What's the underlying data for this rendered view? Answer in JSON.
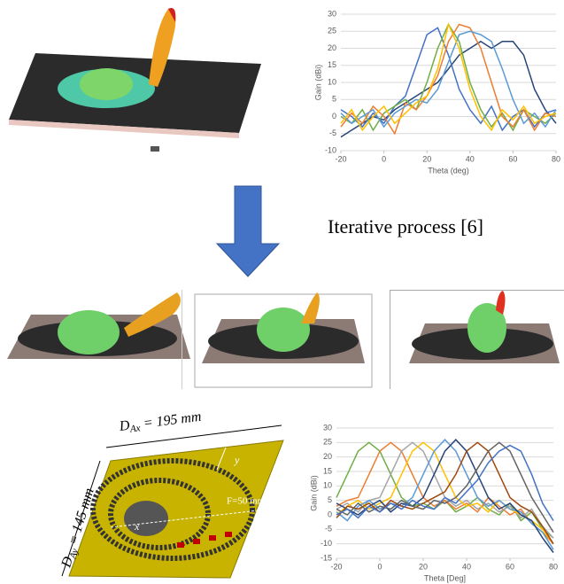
{
  "figure": {
    "caption": "Iterative process [6]",
    "dim_x": {
      "symbol": "D",
      "subscript": "Ax",
      "value": " = 195 mm"
    },
    "dim_y": {
      "symbol": "D",
      "subscript": "Ay",
      "value": " = 145 mm"
    },
    "focal": "F=50 mm",
    "axis_x": "x",
    "axis_y": "y"
  },
  "chart_data": [
    {
      "type": "line",
      "x_label": "Theta (deg)",
      "y_label": "Gain (dBi)",
      "x": [
        -20,
        -15,
        -10,
        -5,
        0,
        5,
        10,
        15,
        20,
        25,
        30,
        35,
        40,
        45,
        50,
        55,
        60,
        65,
        70,
        75,
        80
      ],
      "xlim": [
        -20,
        80
      ],
      "xticks": [
        -20,
        0,
        20,
        40,
        60,
        80
      ],
      "ylim": [
        -10,
        30
      ],
      "yticks": [
        -10,
        -5,
        0,
        5,
        10,
        15,
        20,
        25,
        30
      ],
      "series": [
        {
          "color": "#264478",
          "values": [
            -6,
            -4,
            -2,
            0,
            -1,
            2,
            4,
            6,
            8,
            10,
            14,
            18,
            20,
            22,
            20,
            22,
            22,
            18,
            8,
            2,
            -2
          ]
        },
        {
          "color": "#4472c4",
          "values": [
            2,
            0,
            -3,
            1,
            -2,
            3,
            6,
            15,
            24,
            26,
            18,
            8,
            2,
            -2,
            3,
            -4,
            0,
            2,
            -3,
            1,
            2
          ]
        },
        {
          "color": "#70ad47",
          "values": [
            0,
            -2,
            2,
            -4,
            1,
            3,
            5,
            2,
            10,
            20,
            27,
            22,
            10,
            2,
            -3,
            1,
            -4,
            2,
            0,
            -2,
            1
          ]
        },
        {
          "color": "#ed7d31",
          "values": [
            -3,
            1,
            -2,
            3,
            0,
            -5,
            4,
            2,
            6,
            12,
            22,
            27,
            26,
            20,
            10,
            0,
            -3,
            2,
            -4,
            1,
            0
          ]
        },
        {
          "color": "#5b9bd5",
          "values": [
            1,
            -2,
            0,
            2,
            -3,
            1,
            3,
            5,
            4,
            8,
            16,
            24,
            25,
            24,
            22,
            14,
            5,
            -2,
            1,
            -3,
            2
          ]
        },
        {
          "color": "#ffc000",
          "values": [
            -2,
            2,
            -4,
            0,
            3,
            -2,
            1,
            4,
            6,
            14,
            27,
            20,
            8,
            0,
            -4,
            2,
            -1,
            3,
            -2,
            0,
            1
          ]
        }
      ]
    },
    {
      "type": "line",
      "x_label": "Theta [Deg]",
      "y_label": "Gain (dBi)",
      "x": [
        -20,
        -15,
        -10,
        -5,
        0,
        5,
        10,
        15,
        20,
        25,
        30,
        35,
        40,
        45,
        50,
        55,
        60,
        65,
        70,
        75,
        80
      ],
      "xlim": [
        -20,
        80
      ],
      "xticks": [
        -20,
        0,
        20,
        40,
        60,
        80
      ],
      "ylim": [
        -15,
        30
      ],
      "yticks": [
        -15,
        -10,
        -5,
        0,
        5,
        10,
        15,
        20,
        25,
        30
      ],
      "series": [
        {
          "color": "#70ad47",
          "values": [
            6,
            14,
            22,
            25,
            22,
            14,
            6,
            3,
            4,
            2,
            5,
            1,
            3,
            6,
            2,
            0,
            4,
            -2,
            1,
            -5,
            -8
          ]
        },
        {
          "color": "#ed7d31",
          "values": [
            3,
            5,
            6,
            14,
            22,
            25,
            22,
            14,
            6,
            3,
            5,
            2,
            4,
            1,
            6,
            3,
            0,
            2,
            -3,
            -6,
            -10
          ]
        },
        {
          "color": "#a5a5a5",
          "values": [
            2,
            4,
            1,
            5,
            6,
            14,
            22,
            25,
            22,
            14,
            6,
            3,
            5,
            2,
            4,
            1,
            3,
            -1,
            2,
            -4,
            -8
          ]
        },
        {
          "color": "#ffc000",
          "values": [
            0,
            3,
            5,
            2,
            4,
            6,
            14,
            22,
            25,
            22,
            14,
            6,
            3,
            4,
            1,
            5,
            2,
            0,
            -2,
            -5,
            -10
          ]
        },
        {
          "color": "#5b9bd5",
          "values": [
            1,
            -2,
            3,
            5,
            2,
            4,
            3,
            6,
            14,
            22,
            26,
            22,
            14,
            6,
            3,
            5,
            2,
            1,
            -3,
            -6,
            -12
          ]
        },
        {
          "color": "#264478",
          "values": [
            4,
            2,
            0,
            3,
            5,
            1,
            4,
            3,
            6,
            14,
            22,
            26,
            22,
            14,
            6,
            2,
            4,
            0,
            -2,
            -8,
            -13
          ]
        },
        {
          "color": "#9e480e",
          "values": [
            -1,
            3,
            2,
            4,
            1,
            5,
            3,
            2,
            4,
            6,
            8,
            14,
            22,
            25,
            22,
            14,
            6,
            3,
            1,
            -4,
            -10
          ]
        },
        {
          "color": "#636363",
          "values": [
            2,
            0,
            4,
            1,
            3,
            2,
            5,
            3,
            2,
            5,
            4,
            6,
            10,
            16,
            22,
            25,
            22,
            14,
            6,
            0,
            -6
          ]
        },
        {
          "color": "#4472c4",
          "values": [
            0,
            2,
            -1,
            3,
            1,
            4,
            2,
            5,
            3,
            2,
            6,
            4,
            8,
            12,
            18,
            22,
            24,
            22,
            14,
            4,
            -2
          ]
        }
      ]
    }
  ]
}
